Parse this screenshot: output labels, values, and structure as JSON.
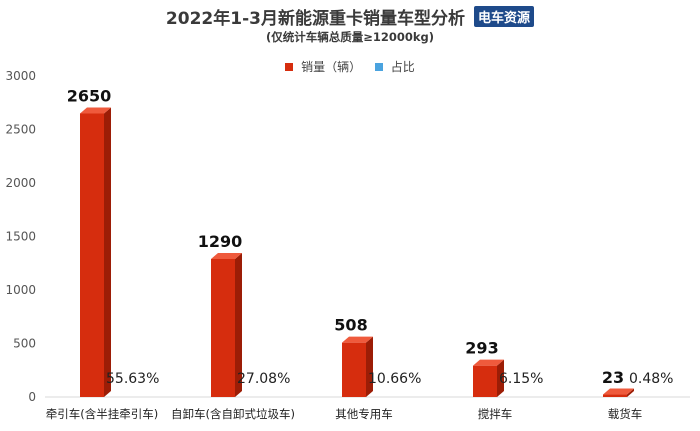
{
  "header": {
    "title": "2022年1-3月新能源重卡销量车型分析",
    "subtitle": "(仅统计车辆总质量≥12000kg)",
    "brand": "电车资源"
  },
  "chart_data": {
    "type": "bar",
    "categories": [
      "牵引车(含半挂牵引车)",
      "自卸车(含自卸式垃圾车)",
      "其他专用车",
      "搅拌车",
      "载货车"
    ],
    "series": [
      {
        "name": "销量（辆）",
        "values": [
          2650,
          1290,
          508,
          293,
          23
        ],
        "color": "#d62d0e"
      },
      {
        "name": "占比",
        "values": [
          "55.63%",
          "27.08%",
          "10.66%",
          "6.15%",
          "0.48%"
        ],
        "color": "#4aa3df"
      }
    ],
    "yticks": [
      "0",
      "500",
      "1000",
      "1500",
      "2000",
      "2500",
      "3000"
    ],
    "ylim": [
      0,
      3000
    ],
    "legend_position": "top-center",
    "grid": false
  }
}
